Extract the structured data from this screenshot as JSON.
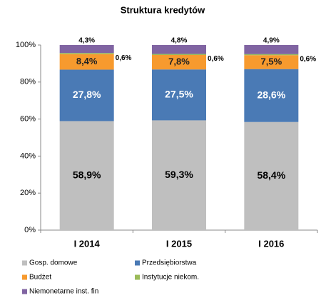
{
  "chart_data": {
    "type": "stacked_bar",
    "title": "Struktura kredytów",
    "categories": [
      "I 2014",
      "I 2015",
      "I 2016"
    ],
    "series": [
      {
        "name": "Gosp. domowe",
        "color": "#bfbfbf",
        "values": [
          58.9,
          59.3,
          58.4
        ],
        "value_labels": [
          "58,9%",
          "59,3%",
          "58,4%"
        ]
      },
      {
        "name": "Przedsiębiorstwa",
        "color": "#4a7ab5",
        "values": [
          27.8,
          27.5,
          28.6
        ],
        "value_labels": [
          "27,8%",
          "27,5%",
          "28,6%"
        ]
      },
      {
        "name": "Budżet",
        "color": "#f79a2e",
        "values": [
          8.4,
          7.8,
          7.5
        ],
        "value_labels": [
          "8,4%",
          "7,8%",
          "7,5%"
        ]
      },
      {
        "name": "Instytucje niekom.",
        "color": "#9bbb59",
        "values": [
          0.6,
          0.6,
          0.6
        ],
        "value_labels": [
          "0,6%",
          "0,6%",
          "0,6%"
        ]
      },
      {
        "name": "Niemonetarne inst. fin",
        "color": "#8064a2",
        "values": [
          4.3,
          4.8,
          4.9
        ],
        "value_labels": [
          "4,3%",
          "4,8%",
          "4,9%"
        ]
      }
    ],
    "ylim": [
      0,
      100
    ],
    "yticks": [
      {
        "value": 0,
        "label": "0%"
      },
      {
        "value": 20,
        "label": "20%"
      },
      {
        "value": 40,
        "label": "40%"
      },
      {
        "value": 60,
        "label": "60%"
      },
      {
        "value": 80,
        "label": "80%"
      },
      {
        "value": 100,
        "label": "100%"
      }
    ]
  }
}
